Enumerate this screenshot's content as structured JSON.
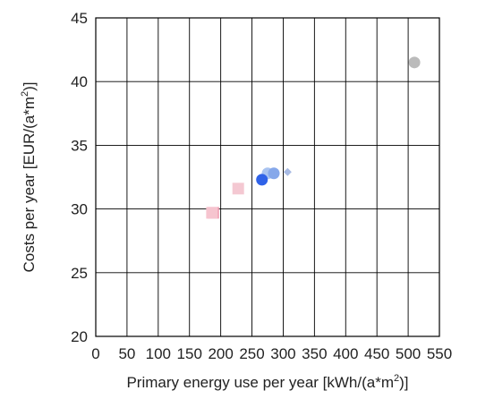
{
  "chart_data": {
    "type": "scatter",
    "title": "",
    "xlabel_main": "Primary energy use per year [kWh/(a*m",
    "xlabel_sup": "2",
    "xlabel_tail": ")]",
    "ylabel_main": "Costs per year [EUR/(a*m",
    "ylabel_sup": "2",
    "ylabel_tail": ")]",
    "xlim": [
      0,
      550
    ],
    "ylim": [
      20,
      45
    ],
    "xticks": [
      "0",
      "50",
      "100",
      "150",
      "200",
      "250",
      "300",
      "350",
      "400",
      "450",
      "500",
      "550"
    ],
    "yticks": [
      "20",
      "25",
      "30",
      "35",
      "40",
      "45"
    ],
    "x_tick_values": [
      0,
      50,
      100,
      150,
      200,
      250,
      300,
      350,
      400,
      450,
      500,
      550
    ],
    "y_tick_values": [
      20,
      25,
      30,
      35,
      40,
      45
    ],
    "grid": true,
    "points": [
      {
        "x": 510,
        "y": 41.5,
        "shape": "circle",
        "color": "#bbbbbb"
      },
      {
        "x": 275,
        "y": 32.8,
        "shape": "circle",
        "color": "#a9c3f0"
      },
      {
        "x": 285,
        "y": 32.8,
        "shape": "circle",
        "color": "#86a8ea"
      },
      {
        "x": 307,
        "y": 32.9,
        "shape": "diamond",
        "color": "#a8bbe4"
      },
      {
        "x": 266,
        "y": 32.3,
        "shape": "circle",
        "color": "#2f62e8"
      },
      {
        "x": 228,
        "y": 31.6,
        "shape": "square",
        "color": "#f4c8d2"
      },
      {
        "x": 188,
        "y": 29.7,
        "shape": "square",
        "color": "#ef9ab0"
      },
      {
        "x": 186,
        "y": 29.7,
        "shape": "square",
        "color": "#f6c4cf"
      }
    ]
  }
}
